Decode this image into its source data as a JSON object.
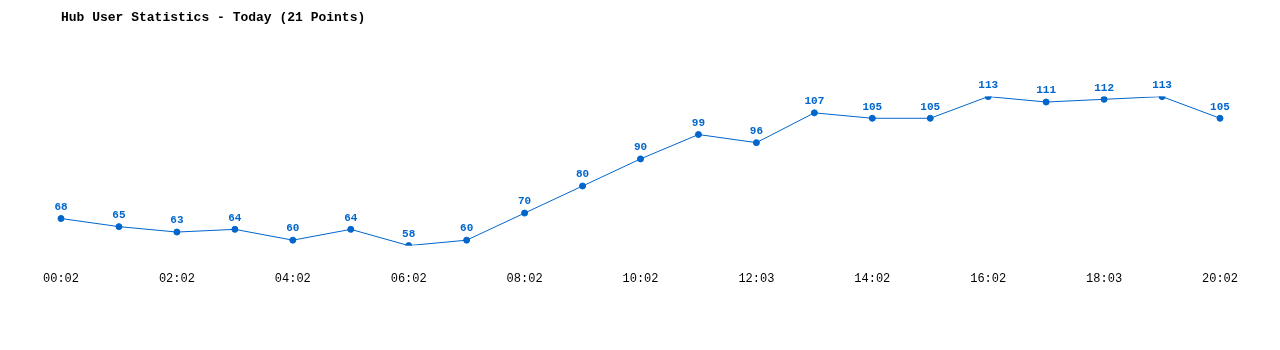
{
  "chart_data": {
    "type": "line",
    "title": "Hub User Statistics - Today (21 Points)",
    "categories": [
      "00:02",
      null,
      "02:02",
      null,
      "04:02",
      null,
      "06:02",
      null,
      "08:02",
      null,
      "10:02",
      null,
      "12:03",
      null,
      "14:02",
      null,
      "16:02",
      null,
      "18:03",
      null,
      "20:02"
    ],
    "values": [
      68,
      65,
      63,
      64,
      60,
      64,
      58,
      60,
      70,
      80,
      90,
      99,
      96,
      107,
      105,
      105,
      113,
      111,
      112,
      113,
      105
    ],
    "color": "#0066cc",
    "marker": "circle",
    "data_labels": true,
    "grid": false,
    "legend": false
  }
}
